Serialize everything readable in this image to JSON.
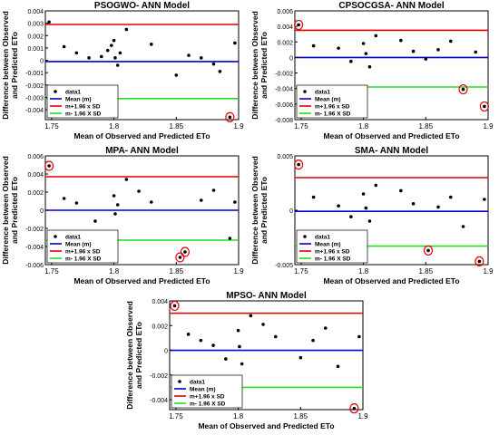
{
  "chart_data": [
    {
      "type": "scatter",
      "title": "PSOGWO- ANN Model",
      "xlabel": "Mean of Observed and Predicted ETo",
      "ylabel": "Difference between Observed and Predicted ETo",
      "ylabel_lines": [
        "Difference between Observed",
        "and Predicted ETo"
      ],
      "xlim": [
        1.745,
        1.9
      ],
      "ylim": [
        -0.0048,
        0.004
      ],
      "xticks": [
        1.75,
        1.8,
        1.85,
        1.9
      ],
      "yticks": [
        0.004,
        0.003,
        0.002,
        0.001,
        0,
        -0.001,
        -0.002,
        -0.003,
        -0.004
      ],
      "xtick_labels": [
        "1.75",
        "1.8",
        "1.85",
        "1.9"
      ],
      "ytick_labels": [
        "0.004",
        "0.003",
        "0.002",
        "0.001",
        "0",
        "-0.001",
        "-0.002",
        "-0.003",
        "-0.004"
      ],
      "mean": -0.0001,
      "upper": 0.0029,
      "lower": -0.0031,
      "legend": [
        "data1",
        "Mean (m)",
        "m+1.96 x SD",
        "m- 1.96 X SD"
      ],
      "points": [
        [
          1.748,
          0.0031
        ],
        [
          1.76,
          0.0011
        ],
        [
          1.77,
          0.0006
        ],
        [
          1.78,
          0.0002
        ],
        [
          1.79,
          0.0003
        ],
        [
          1.795,
          0.0008
        ],
        [
          1.798,
          0.0012
        ],
        [
          1.8,
          0.0016
        ],
        [
          1.801,
          0.0002
        ],
        [
          1.803,
          -0.0004
        ],
        [
          1.805,
          0.0006
        ],
        [
          1.81,
          0.0025
        ],
        [
          1.83,
          0.0013
        ],
        [
          1.85,
          -0.0012
        ],
        [
          1.86,
          0.0004
        ],
        [
          1.87,
          0.0002
        ],
        [
          1.88,
          -0.0003
        ],
        [
          1.885,
          -0.0009
        ],
        [
          1.893,
          -0.0046
        ],
        [
          1.897,
          0.0014
        ]
      ]
    },
    {
      "type": "scatter",
      "title": "CPSOCGSA- ANN Model",
      "xlabel": "Mean of Observed and Predicted ETo",
      "ylabel": "Difference between Observed and Predicted ETo",
      "ylabel_lines": [
        "Difference between Observed",
        "and Predicted ETo"
      ],
      "xlim": [
        1.745,
        1.9
      ],
      "ylim": [
        -0.008,
        0.006
      ],
      "xticks": [
        1.75,
        1.8,
        1.85,
        1.9
      ],
      "yticks": [
        0.006,
        0.004,
        0.002,
        0,
        -0.002,
        -0.004,
        -0.006,
        -0.008
      ],
      "xtick_labels": [
        "1.75",
        "1.8",
        "1.85",
        "1.9"
      ],
      "ytick_labels": [
        "0.006",
        "0.004",
        "0.002",
        "0",
        "-0.002",
        "-0.004",
        "-0.006",
        "-0.008"
      ],
      "mean": 0.0,
      "upper": 0.0035,
      "lower": -0.0038,
      "legend": [
        "data1",
        "Mean (m)",
        "m+1.96 x SD",
        "m- 1.96 X SD"
      ],
      "points": [
        [
          1.748,
          0.0042
        ],
        [
          1.76,
          0.0015
        ],
        [
          1.78,
          0.0012
        ],
        [
          1.79,
          -0.0005
        ],
        [
          1.8,
          0.0018
        ],
        [
          1.802,
          0.0005
        ],
        [
          1.805,
          -0.0012
        ],
        [
          1.81,
          0.0028
        ],
        [
          1.83,
          0.0022
        ],
        [
          1.84,
          0.0008
        ],
        [
          1.85,
          -0.0002
        ],
        [
          1.86,
          0.001
        ],
        [
          1.87,
          0.0021
        ],
        [
          1.88,
          -0.0041
        ],
        [
          1.89,
          0.0007
        ],
        [
          1.897,
          -0.0063
        ]
      ]
    },
    {
      "type": "scatter",
      "title": "MPA- ANN Model",
      "xlabel": "Mean of Observed and Predicted ETo",
      "ylabel": "Difference between Observed and Predicted ETo",
      "ylabel_lines": [
        "Difference between Observed",
        "and Predicted ETo"
      ],
      "xlim": [
        1.745,
        1.9
      ],
      "ylim": [
        -0.006,
        0.006
      ],
      "xticks": [
        1.75,
        1.8,
        1.85,
        1.9
      ],
      "yticks": [
        0.006,
        0.004,
        0.002,
        0,
        -0.002,
        -0.004,
        -0.006
      ],
      "xtick_labels": [
        "1.75",
        "1.8",
        "1.85",
        "1.9"
      ],
      "ytick_labels": [
        "0.006",
        "0.004",
        "0.002",
        "0",
        "-0.002",
        "-0.004",
        "-0.006"
      ],
      "mean": 0.0,
      "upper": 0.0037,
      "lower": -0.0033,
      "legend": [
        "data1",
        "Mean (m)",
        "m+1.96 x SD",
        "m- 1.96 X SD"
      ],
      "points": [
        [
          1.748,
          0.0049
        ],
        [
          1.76,
          0.0013
        ],
        [
          1.77,
          0.0008
        ],
        [
          1.785,
          -0.0012
        ],
        [
          1.8,
          0.0016
        ],
        [
          1.801,
          -0.0004
        ],
        [
          1.803,
          0.0006
        ],
        [
          1.81,
          0.0034
        ],
        [
          1.82,
          0.0021
        ],
        [
          1.83,
          0.0009
        ],
        [
          1.853,
          -0.0052
        ],
        [
          1.857,
          -0.0046
        ],
        [
          1.87,
          0.0011
        ],
        [
          1.88,
          0.0022
        ],
        [
          1.893,
          -0.0031
        ],
        [
          1.897,
          0.0009
        ]
      ]
    },
    {
      "type": "scatter",
      "title": "SMA- ANN Model",
      "xlabel": "Mean of Observed and Predicted ETo",
      "ylabel": "Difference between Observed and Predicted ETo",
      "ylabel_lines": [
        "Difference between Observed",
        "and Predicted ETo"
      ],
      "xlim": [
        1.745,
        1.9
      ],
      "ylim": [
        -0.005,
        0.005
      ],
      "xticks": [
        1.75,
        1.8,
        1.85,
        1.9
      ],
      "yticks": [
        0.005,
        0,
        -0.005
      ],
      "xtick_labels": [
        "1.75",
        "1.8",
        "1.85",
        "1.9"
      ],
      "ytick_labels": [
        "0.005",
        "0",
        "-0.005"
      ],
      "mean": -0.0001,
      "upper": 0.003,
      "lower": -0.0033,
      "legend": [
        "data1",
        "Mean (m)",
        "m+1.96 x SD",
        "m- 1.96 X SD"
      ],
      "points": [
        [
          1.748,
          0.0042
        ],
        [
          1.76,
          0.0012
        ],
        [
          1.78,
          0.0004
        ],
        [
          1.79,
          -0.0006
        ],
        [
          1.8,
          0.0015
        ],
        [
          1.802,
          0.0002
        ],
        [
          1.805,
          -0.001
        ],
        [
          1.81,
          0.0023
        ],
        [
          1.83,
          0.0018
        ],
        [
          1.84,
          0.0006
        ],
        [
          1.852,
          -0.0037
        ],
        [
          1.86,
          0.0003
        ],
        [
          1.87,
          0.0012
        ],
        [
          1.88,
          -0.0015
        ],
        [
          1.893,
          -0.0047
        ],
        [
          1.897,
          0.001
        ]
      ]
    },
    {
      "type": "scatter",
      "title": "MPSO- ANN Model",
      "xlabel": "Mean of Observed and Predicted ETo",
      "ylabel": "Difference between Observed and Predicted ETo",
      "ylabel_lines": [
        "Difference between Observed",
        "and Predicted ETo"
      ],
      "xlim": [
        1.745,
        1.9
      ],
      "ylim": [
        -0.0048,
        0.004
      ],
      "xticks": [
        1.75,
        1.8,
        1.85,
        1.9
      ],
      "yticks": [
        0.004,
        0.002,
        0,
        -0.002,
        -0.004
      ],
      "xtick_labels": [
        "1.75",
        "1.8",
        "1.85",
        "1.9"
      ],
      "ytick_labels": [
        "0.004",
        "0.002",
        "0",
        "-0.002",
        "-0.004"
      ],
      "mean": 0.0,
      "upper": 0.003,
      "lower": -0.003,
      "legend": [
        "data1",
        "Mean (m)",
        "m+1.96 x SD",
        "m- 1.96 X SD"
      ],
      "points": [
        [
          1.749,
          0.0036
        ],
        [
          1.76,
          0.0013
        ],
        [
          1.77,
          0.0008
        ],
        [
          1.78,
          0.0004
        ],
        [
          1.79,
          -0.0007
        ],
        [
          1.8,
          0.0016
        ],
        [
          1.801,
          0.0003
        ],
        [
          1.803,
          -0.0011
        ],
        [
          1.81,
          0.0028
        ],
        [
          1.82,
          0.0021
        ],
        [
          1.83,
          0.0011
        ],
        [
          1.85,
          -0.0006
        ],
        [
          1.86,
          0.0008
        ],
        [
          1.87,
          0.0018
        ],
        [
          1.88,
          -0.0013
        ],
        [
          1.893,
          -0.0047
        ],
        [
          1.897,
          0.0011
        ]
      ]
    }
  ],
  "colors": {
    "data": "#000000",
    "mean": "#0000cc",
    "upper": "#e00000",
    "lower": "#22dd22",
    "highlight": "#e00000"
  }
}
